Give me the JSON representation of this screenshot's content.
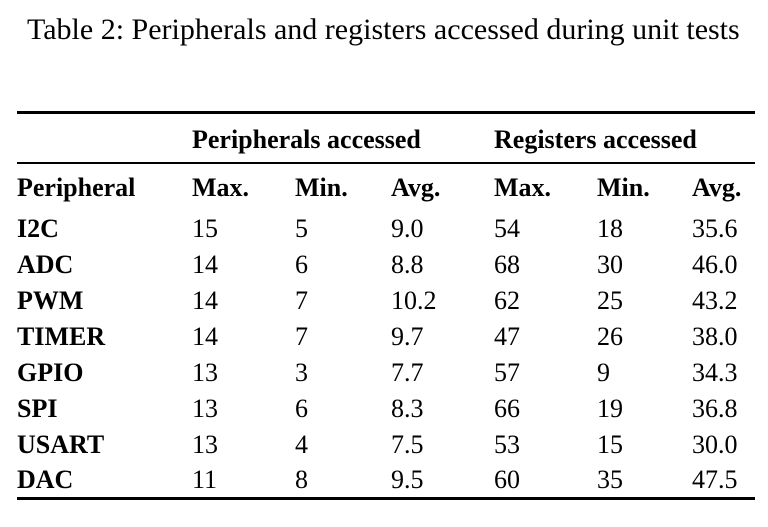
{
  "caption": "Table 2: Peripherals and registers accessed during unit tests",
  "table": {
    "group_headers": {
      "peripherals": "Peripherals accessed",
      "registers": "Registers accessed"
    },
    "columns": [
      "Peripheral",
      "Max.",
      "Min.",
      "Avg.",
      "Max.",
      "Min.",
      "Avg."
    ],
    "rows": [
      {
        "peripheral": "I2C",
        "values": [
          "15",
          "5",
          "9.0",
          "54",
          "18",
          "35.6"
        ]
      },
      {
        "peripheral": "ADC",
        "values": [
          "14",
          "6",
          "8.8",
          "68",
          "30",
          "46.0"
        ]
      },
      {
        "peripheral": "PWM",
        "values": [
          "14",
          "7",
          "10.2",
          "62",
          "25",
          "43.2"
        ]
      },
      {
        "peripheral": "TIMER",
        "values": [
          "14",
          "7",
          "9.7",
          "47",
          "26",
          "38.0"
        ]
      },
      {
        "peripheral": "GPIO",
        "values": [
          "13",
          "3",
          "7.7",
          "57",
          "9",
          "34.3"
        ]
      },
      {
        "peripheral": "SPI",
        "values": [
          "13",
          "6",
          "8.3",
          "66",
          "19",
          "36.8"
        ]
      },
      {
        "peripheral": "USART",
        "values": [
          "13",
          "4",
          "7.5",
          "53",
          "15",
          "30.0"
        ]
      },
      {
        "peripheral": "DAC",
        "values": [
          "11",
          "8",
          "9.5",
          "60",
          "35",
          "47.5"
        ]
      }
    ],
    "colors": {
      "text": "#000000",
      "background": "#ffffff",
      "rule": "#000000"
    }
  }
}
